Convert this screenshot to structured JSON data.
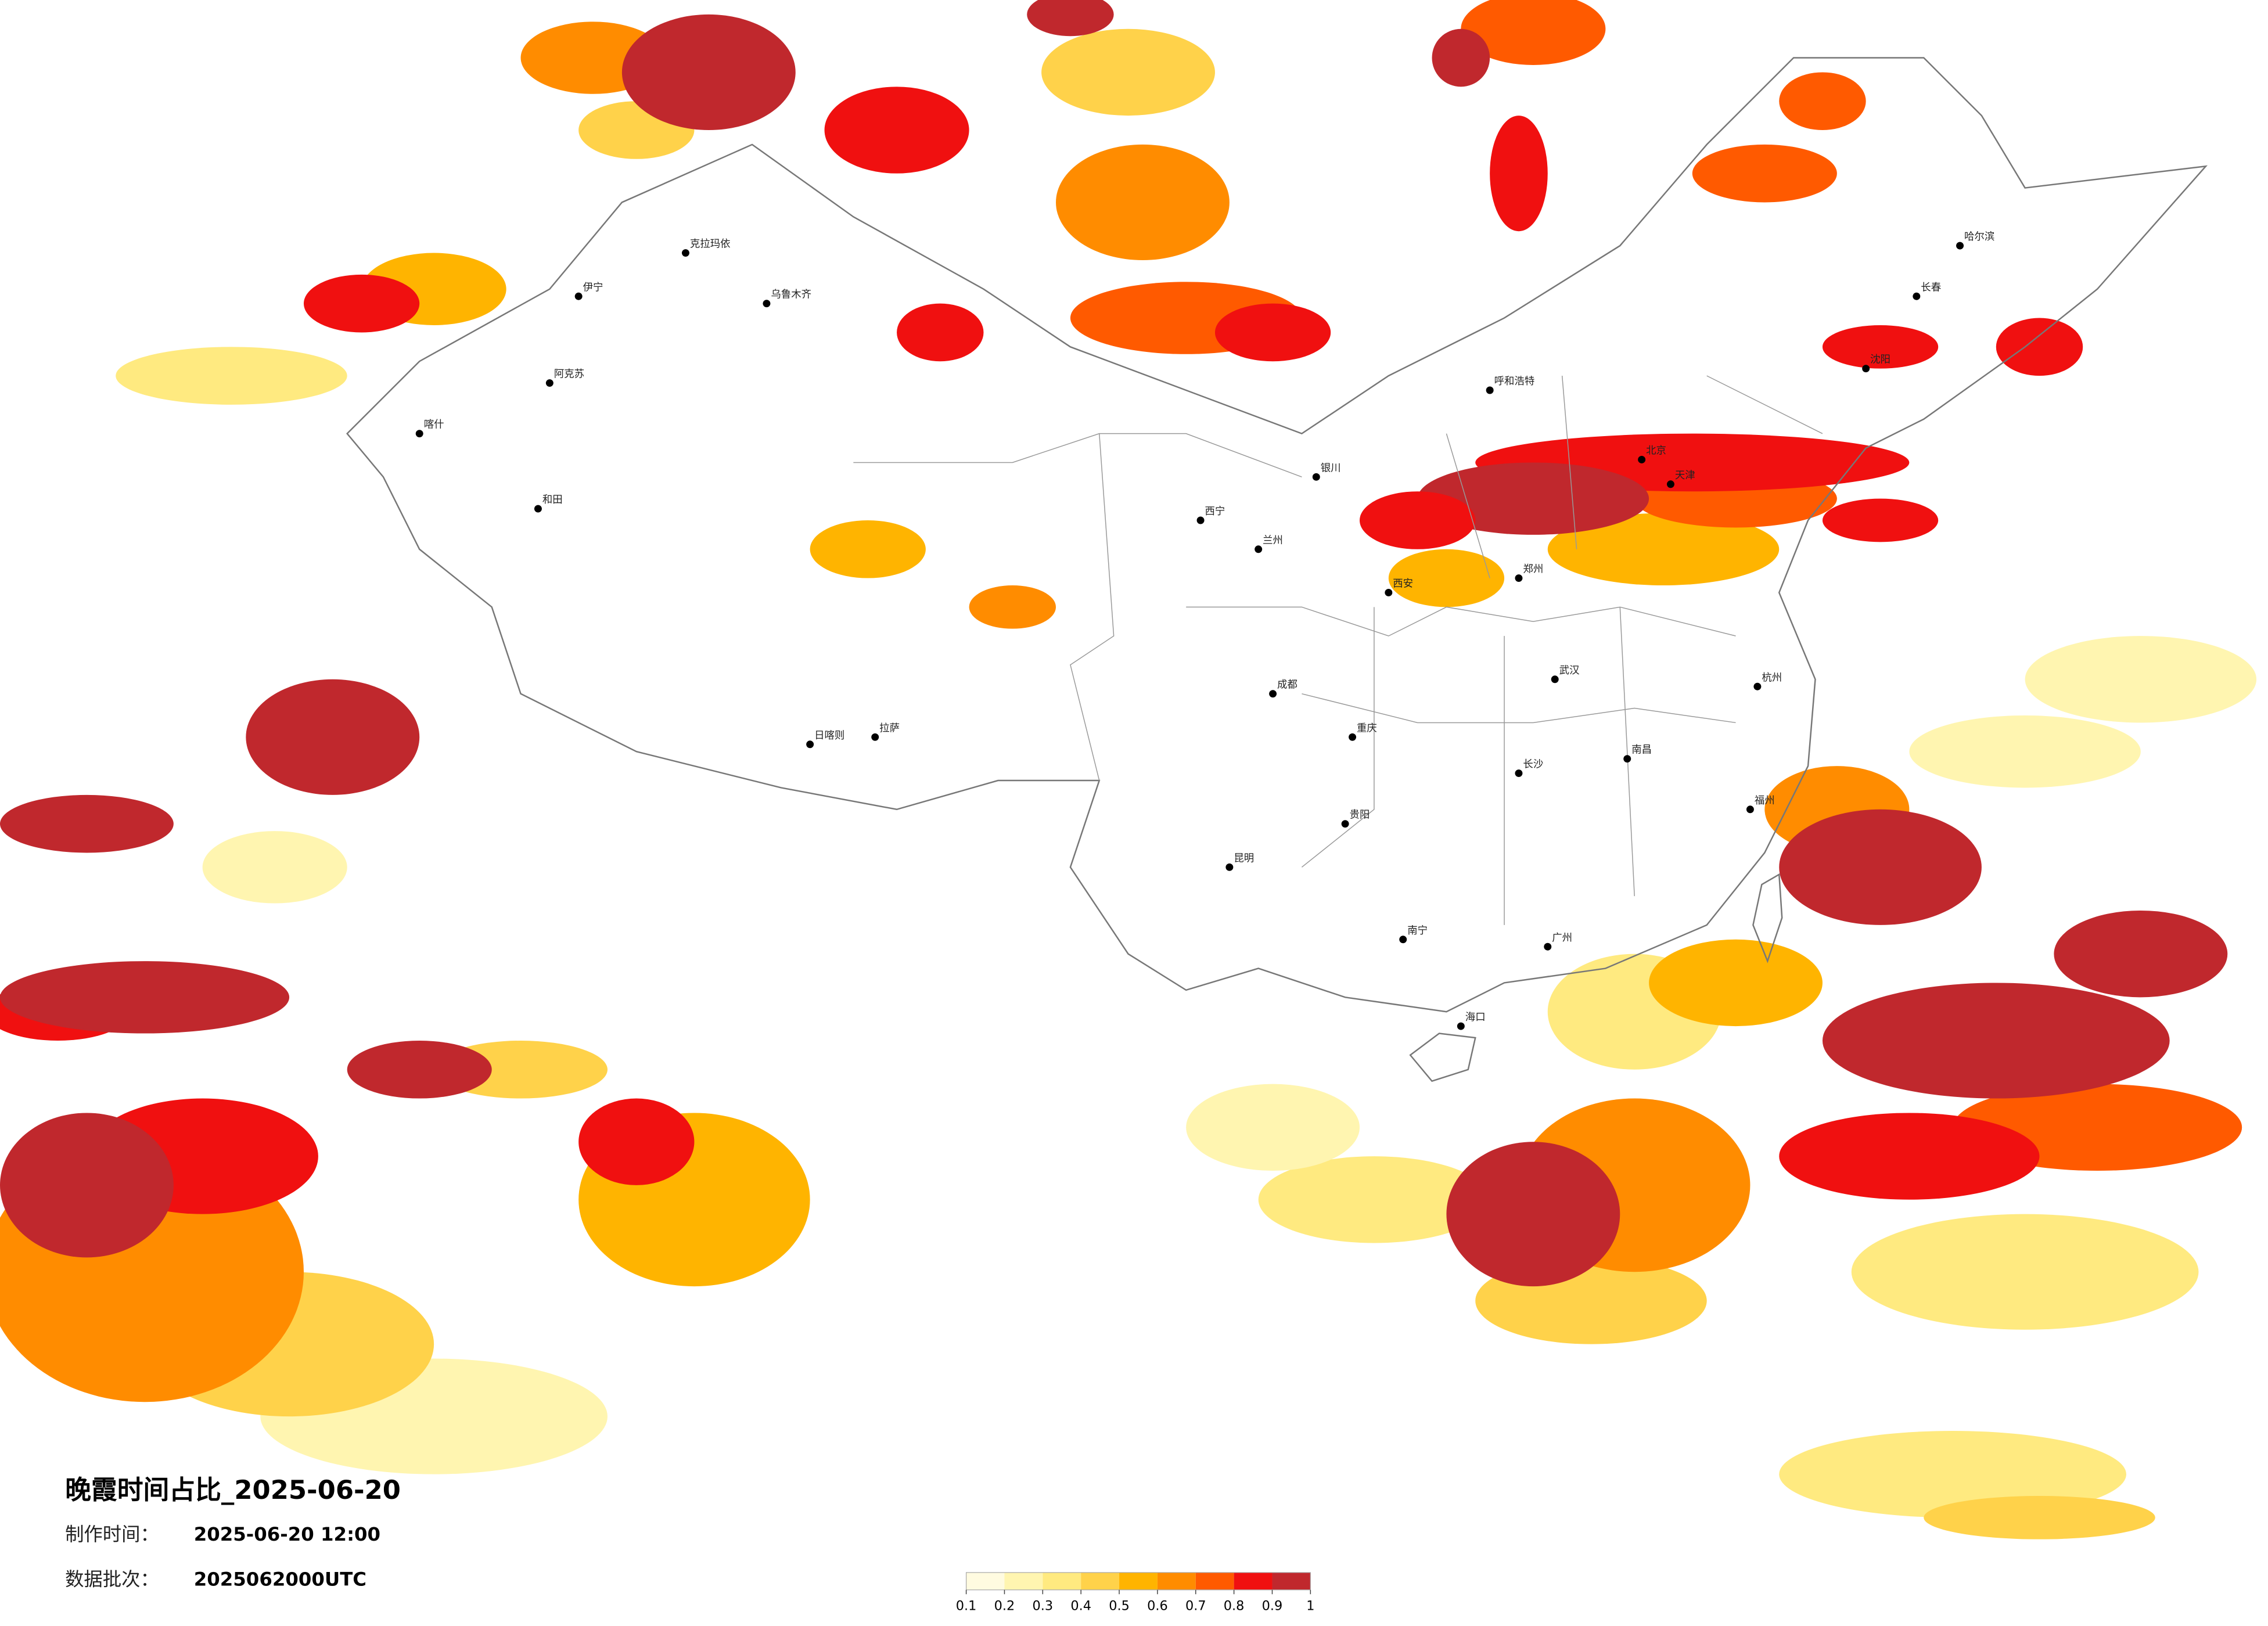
{
  "title": "晚霞时间占比_2025-06-20",
  "production_time": {
    "label": "制作时间：",
    "value": "2025-06-20 12:00"
  },
  "batch": {
    "label": "数据批次：",
    "value": "2025062000UTC"
  },
  "colorbar": {
    "ticks": [
      0.1,
      0.2,
      0.3,
      0.4,
      0.5,
      0.6,
      0.7,
      0.8,
      0.9,
      1
    ],
    "colors": [
      "#fffbe0",
      "#fff5b0",
      "#ffea80",
      "#ffd24a",
      "#ffb400",
      "#ff8c00",
      "#ff5a00",
      "#f01010",
      "#c0282d"
    ]
  },
  "cities": [
    "乌鲁木齐",
    "克拉玛依",
    "伊宁",
    "阿克苏",
    "和田",
    "喀什",
    "拉萨",
    "日喀则",
    "西宁",
    "兰州",
    "银川",
    "呼和浩特",
    "北京",
    "天津",
    "哈尔滨",
    "长春",
    "沈阳",
    "西安",
    "郑州",
    "武汉",
    "成都",
    "重庆",
    "贵阳",
    "昆明",
    "长沙",
    "南昌",
    "杭州",
    "福州",
    "广州",
    "南宁",
    "海口"
  ]
}
